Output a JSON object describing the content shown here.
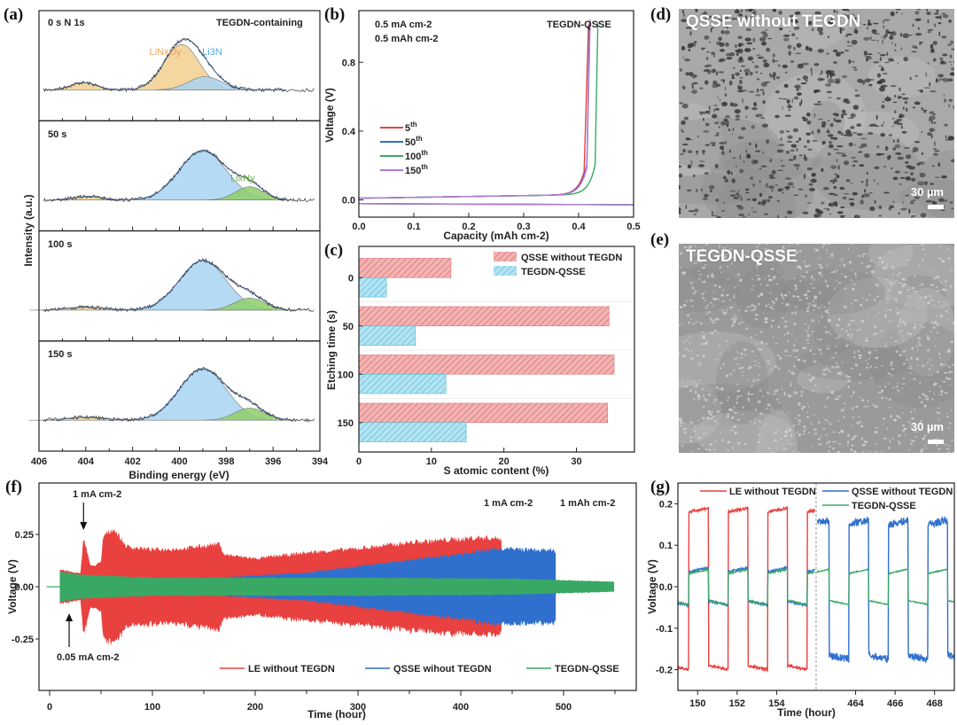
{
  "figure": {
    "panel_labels": [
      "(a)",
      "(b)",
      "(c)",
      "(d)",
      "(e)",
      "(f)",
      "(g)"
    ]
  },
  "colors": {
    "red": "#e8413f",
    "blue": "#2f6fcd",
    "green": "#3aa865",
    "purple": "#b07ad8",
    "orange_fill": "#f2cf8e",
    "blue_fill": "#a8d4f2",
    "green_fill": "#8fce6a",
    "bar_red": "#ec9a9a",
    "bar_blue": "#8fd3ea"
  },
  "sem": {
    "d": {
      "title": "QSSE without TEGDN",
      "scale": "30 µm"
    },
    "e": {
      "title": "TEGDN-QSSE",
      "scale": "30 µm"
    }
  },
  "chart_data": [
    {
      "id": "a",
      "type": "line",
      "title": "TEGDN-containing",
      "xlabel": "Binding energy (eV)",
      "ylabel": "Intensity (a.u.)",
      "xlim": [
        406,
        394
      ],
      "xticks": [
        "406",
        "404",
        "402",
        "400",
        "398",
        "396",
        "394"
      ],
      "subpanels": [
        {
          "label": "0 s N 1s",
          "peaks": [
            {
              "name": "LiNxOy",
              "center": 404.1,
              "height": 0.12,
              "width": 0.55,
              "color": "orange_fill"
            },
            {
              "name": "LiNxOy",
              "center": 399.9,
              "height": 0.75,
              "width": 0.75,
              "color": "orange_fill"
            },
            {
              "name": "Li3N",
              "center": 398.9,
              "height": 0.22,
              "width": 0.7,
              "color": "blue_fill"
            }
          ],
          "labels": [
            {
              "text": "LiNxOy",
              "x": 400.6,
              "color": "#e7a55e"
            },
            {
              "text": "Li3N",
              "x": 398.6,
              "color": "#4ea9de"
            }
          ]
        },
        {
          "label": "50 s",
          "peaks": [
            {
              "name": "LiNxOy",
              "center": 403.9,
              "height": 0.06,
              "width": 0.6,
              "color": "orange_fill"
            },
            {
              "name": "Li3N",
              "center": 399.0,
              "height": 0.82,
              "width": 1.0,
              "color": "blue_fill"
            },
            {
              "name": "LixNy",
              "center": 397.0,
              "height": 0.22,
              "width": 0.6,
              "color": "green_fill"
            }
          ],
          "labels": [
            {
              "text": "LixNy",
              "x": 397.3,
              "color": "#6db04a"
            }
          ]
        },
        {
          "label": "100 s",
          "peaks": [
            {
              "name": "LiNxOy",
              "center": 404.0,
              "height": 0.05,
              "width": 0.8,
              "color": "orange_fill"
            },
            {
              "name": "Li3N",
              "center": 399.0,
              "height": 0.82,
              "width": 1.0,
              "color": "blue_fill"
            },
            {
              "name": "LixNy",
              "center": 397.0,
              "height": 0.2,
              "width": 0.65,
              "color": "green_fill"
            }
          ],
          "labels": []
        },
        {
          "label": "150 s",
          "peaks": [
            {
              "name": "LiNxOy",
              "center": 404.0,
              "height": 0.05,
              "width": 0.8,
              "color": "orange_fill"
            },
            {
              "name": "Li3N",
              "center": 399.0,
              "height": 0.85,
              "width": 1.0,
              "color": "blue_fill"
            },
            {
              "name": "LixNy",
              "center": 397.0,
              "height": 0.2,
              "width": 0.65,
              "color": "green_fill"
            }
          ],
          "labels": []
        }
      ]
    },
    {
      "id": "b",
      "type": "line",
      "title": "TEGDN-QSSE",
      "annotations": [
        "0.5 mA cm-2",
        "0.5 mAh cm-2"
      ],
      "xlabel": "Capacity (mAh cm-2)",
      "ylabel": "Voltage (V)",
      "xlim": [
        0,
        0.5
      ],
      "ylim": [
        -0.1,
        1.1
      ],
      "xticks": [
        "0.0",
        "0.1",
        "0.2",
        "0.3",
        "0.4",
        "0.5"
      ],
      "yticks": [
        "0.0",
        "0.4",
        "0.8"
      ],
      "series": [
        {
          "name": "5th",
          "color": "red",
          "cutoff": 0.415,
          "top": 1.02
        },
        {
          "name": "50th",
          "color": "blue",
          "cutoff": 0.417,
          "top": 1.03
        },
        {
          "name": "100th",
          "color": "green",
          "cutoff": 0.432,
          "top": 1.03
        },
        {
          "name": "150th",
          "color": "purple",
          "cutoff": 0.418,
          "top": 1.05
        }
      ]
    },
    {
      "id": "c",
      "type": "bar",
      "orientation": "horizontal",
      "xlabel": "S atomic content (%)",
      "ylabel": "Etching time (s)",
      "xlim": [
        0,
        38
      ],
      "xticks": [
        "0",
        "10",
        "20",
        "30"
      ],
      "categories": [
        "0",
        "50",
        "100",
        "150"
      ],
      "series": [
        {
          "name": "QSSE without TEGDN",
          "values": [
            12.7,
            34.5,
            35.2,
            34.3
          ],
          "color": "bar_red"
        },
        {
          "name": "TEGDN-QSSE",
          "values": [
            3.8,
            7.8,
            12.0,
            14.8
          ],
          "color": "bar_blue"
        }
      ]
    },
    {
      "id": "f",
      "type": "area",
      "xlabel": "Time (hour)",
      "ylabel": "Voltage (V)",
      "xlim": [
        -10,
        570
      ],
      "ylim": [
        -0.5,
        0.5
      ],
      "xticks": [
        "0",
        "100",
        "200",
        "300",
        "400",
        "500"
      ],
      "yticks": [
        "0.25",
        "0.00",
        "-0.25"
      ],
      "annotations": [
        {
          "text": "1 mA cm-2",
          "at_hour": 33,
          "position": "top"
        },
        {
          "text": "0.05 mA cm-2",
          "at_hour": 19,
          "position": "bottom"
        },
        {
          "text": "1 mA cm-2",
          "position": "top-right"
        },
        {
          "text": "1 mAh cm-2",
          "position": "top-right"
        }
      ],
      "series": [
        {
          "name": "LE without TEGDN",
          "color": "red",
          "end_hour": 440,
          "envelope": [
            [
              10,
              0.085
            ],
            [
              30,
              0.065
            ],
            [
              33,
              0.25
            ],
            [
              40,
              0.1
            ],
            [
              50,
              0.12
            ],
            [
              52,
              0.25
            ],
            [
              62,
              0.29
            ],
            [
              75,
              0.2
            ],
            [
              100,
              0.185
            ],
            [
              130,
              0.19
            ],
            [
              165,
              0.215
            ],
            [
              170,
              0.16
            ],
            [
              200,
              0.14
            ],
            [
              250,
              0.17
            ],
            [
              300,
              0.19
            ],
            [
              350,
              0.22
            ],
            [
              420,
              0.245
            ],
            [
              440,
              0.24
            ]
          ]
        },
        {
          "name": "QSSE wihout TEGDN",
          "color": "blue",
          "end_hour": 493,
          "envelope": [
            [
              10,
              0.07
            ],
            [
              45,
              0.04
            ],
            [
              150,
              0.04
            ],
            [
              250,
              0.07
            ],
            [
              330,
              0.12
            ],
            [
              440,
              0.19
            ],
            [
              493,
              0.18
            ]
          ]
        },
        {
          "name": "TEGDN-QSSE",
          "color": "green",
          "end_hour": 550,
          "envelope": [
            [
              10,
              0.075
            ],
            [
              30,
              0.06
            ],
            [
              100,
              0.045
            ],
            [
              300,
              0.045
            ],
            [
              450,
              0.04
            ],
            [
              550,
              0.025
            ]
          ]
        }
      ]
    },
    {
      "id": "g",
      "type": "line",
      "xlabel": "Time (hour)",
      "ylabel": "Voltage (V)",
      "ylim": [
        -0.25,
        0.25
      ],
      "yticks": [
        "0.2",
        "0.1",
        "0.0",
        "-0.1",
        "-0.2"
      ],
      "xticks": [
        "150",
        "152",
        "154",
        "464",
        "466",
        "468"
      ],
      "segments": [
        {
          "xlim": [
            149,
            156
          ]
        },
        {
          "xlim": [
            462,
            469
          ]
        }
      ],
      "series": [
        {
          "name": "LE without TEGDN",
          "color": "red",
          "segment": 0,
          "high": 0.18,
          "low": -0.19
        },
        {
          "name": "QSSE without TEGDN",
          "color": "blue",
          "segment": 1,
          "high": 0.15,
          "low": -0.165
        },
        {
          "name": "TEGDN-QSSE",
          "color": "green",
          "segment": "both",
          "high": 0.032,
          "low": -0.033
        }
      ]
    }
  ]
}
